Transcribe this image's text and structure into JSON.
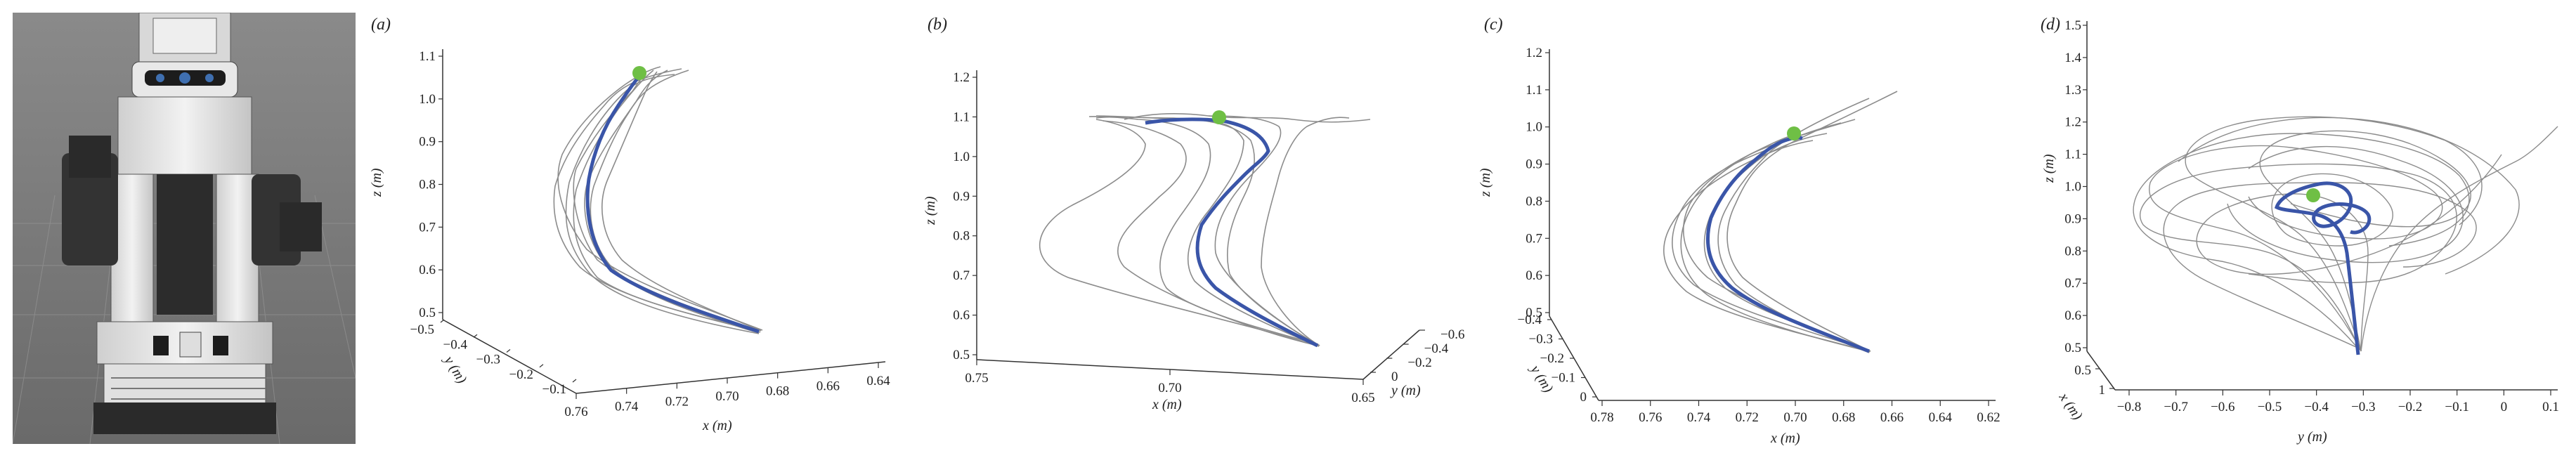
{
  "figure": {
    "panel_labels": [
      "(a)",
      "(b)",
      "(c)",
      "(d)"
    ],
    "robot_image_description": "robot-render"
  },
  "colors": {
    "mean_trajectory": "#3a55a8",
    "demo_trajectory": "#8c8c8c",
    "goal_marker": "#6fbf45",
    "background_render": "#6e6e6e",
    "robot_body": "#e6e6e6",
    "robot_dark": "#2a2a2a",
    "robot_accent": "#3f6fb0"
  },
  "chart_data": [
    {
      "type": "line",
      "panel": "(a)",
      "projection": "3d",
      "xlabel": "x (m)",
      "ylabel": "y (m)",
      "zlabel": "z (m)",
      "x_ticks": [
        "0.76",
        "0.74",
        "0.72",
        "0.70",
        "0.68",
        "0.66",
        "0.64"
      ],
      "y_ticks": [
        "−0.5",
        "−0.4",
        "−0.3",
        "−0.2",
        "−0.1"
      ],
      "z_ticks": [
        "0.5",
        "0.6",
        "0.7",
        "0.8",
        "0.9",
        "1.0",
        "1.1"
      ],
      "zlim": [
        0.5,
        1.1
      ],
      "series": [
        {
          "role": "mean",
          "points": [
            [
              0.675,
              -0.15,
              0.52
            ],
            [
              0.705,
              -0.22,
              0.57
            ],
            [
              0.725,
              -0.28,
              0.66
            ],
            [
              0.735,
              -0.31,
              0.76
            ],
            [
              0.735,
              -0.33,
              0.85
            ],
            [
              0.725,
              -0.33,
              0.93
            ],
            [
              0.71,
              -0.31,
              0.99
            ],
            [
              0.705,
              -0.3,
              1.02
            ]
          ]
        },
        {
          "role": "goal",
          "points": [
            [
              0.705,
              -0.3,
              1.03
            ]
          ]
        }
      ]
    },
    {
      "type": "line",
      "panel": "(b)",
      "projection": "3d",
      "xlabel": "x (m)",
      "ylabel": "y (m)",
      "zlabel": "z (m)",
      "x_ticks": [
        "0.75",
        "0.70",
        "0.65"
      ],
      "y_ticks": [
        "0",
        "−0.2",
        "−0.4",
        "−0.6"
      ],
      "z_ticks": [
        "0.5",
        "0.6",
        "0.7",
        "0.8",
        "0.9",
        "1.0",
        "1.1",
        "1.2"
      ],
      "zlim": [
        0.5,
        1.2
      ],
      "series": [
        {
          "role": "mean",
          "points": [
            [
              0.65,
              -0.05,
              0.52
            ],
            [
              0.675,
              -0.25,
              0.62
            ],
            [
              0.7,
              -0.35,
              0.73
            ],
            [
              0.695,
              -0.4,
              0.84
            ],
            [
              0.665,
              -0.45,
              0.96
            ],
            [
              0.665,
              -0.45,
              1.05
            ],
            [
              0.69,
              -0.4,
              1.1
            ],
            [
              0.71,
              -0.35,
              1.11
            ]
          ]
        },
        {
          "role": "goal",
          "points": [
            [
              0.695,
              -0.38,
              1.12
            ]
          ]
        }
      ]
    },
    {
      "type": "line",
      "panel": "(c)",
      "projection": "3d",
      "xlabel": "x (m)",
      "ylabel": "y (m)",
      "zlabel": "z (m)",
      "x_ticks": [
        "0.78",
        "0.76",
        "0.74",
        "0.72",
        "0.70",
        "0.68",
        "0.66",
        "0.64",
        "0.62"
      ],
      "y_ticks": [
        "−0.4",
        "−0.3",
        "−0.2",
        "−0.1",
        "0"
      ],
      "z_ticks": [
        "0.5",
        "0.6",
        "0.7",
        "0.8",
        "0.9",
        "1.0",
        "1.1",
        "1.2"
      ],
      "zlim": [
        0.5,
        1.2
      ],
      "series": [
        {
          "role": "mean",
          "points": [
            [
              0.68,
              -0.05,
              0.52
            ],
            [
              0.715,
              -0.12,
              0.6
            ],
            [
              0.735,
              -0.18,
              0.7
            ],
            [
              0.73,
              -0.22,
              0.8
            ],
            [
              0.715,
              -0.25,
              0.9
            ],
            [
              0.7,
              -0.27,
              0.97
            ],
            [
              0.695,
              -0.28,
              1.0
            ]
          ]
        },
        {
          "role": "goal",
          "points": [
            [
              0.705,
              -0.28,
              1.0
            ]
          ]
        }
      ]
    },
    {
      "type": "line",
      "panel": "(d)",
      "projection": "3d",
      "xlabel": "x (m)",
      "ylabel": "y (m)",
      "zlabel": "z (m)",
      "x_ticks": [
        "0.5",
        "1"
      ],
      "y_ticks": [
        "−0.8",
        "−0.7",
        "−0.6",
        "−0.5",
        "−0.4",
        "−0.3",
        "−0.2",
        "−0.1",
        "0",
        "0.1"
      ],
      "z_ticks": [
        "0.5",
        "0.6",
        "0.7",
        "0.8",
        "0.9",
        "1.0",
        "1.1",
        "1.2",
        "1.3",
        "1.4",
        "1.5"
      ],
      "zlim": [
        0.5,
        1.5
      ],
      "series": [
        {
          "role": "mean",
          "points": [
            [
              0.55,
              -0.25,
              0.52
            ],
            [
              0.6,
              -0.27,
              0.7
            ],
            [
              0.62,
              -0.3,
              0.9
            ],
            [
              0.65,
              -0.35,
              1.0
            ],
            [
              0.65,
              -0.45,
              1.05
            ],
            [
              0.62,
              -0.4,
              1.08
            ]
          ]
        },
        {
          "role": "goal",
          "points": [
            [
              0.62,
              -0.42,
              1.02
            ]
          ]
        }
      ]
    }
  ]
}
